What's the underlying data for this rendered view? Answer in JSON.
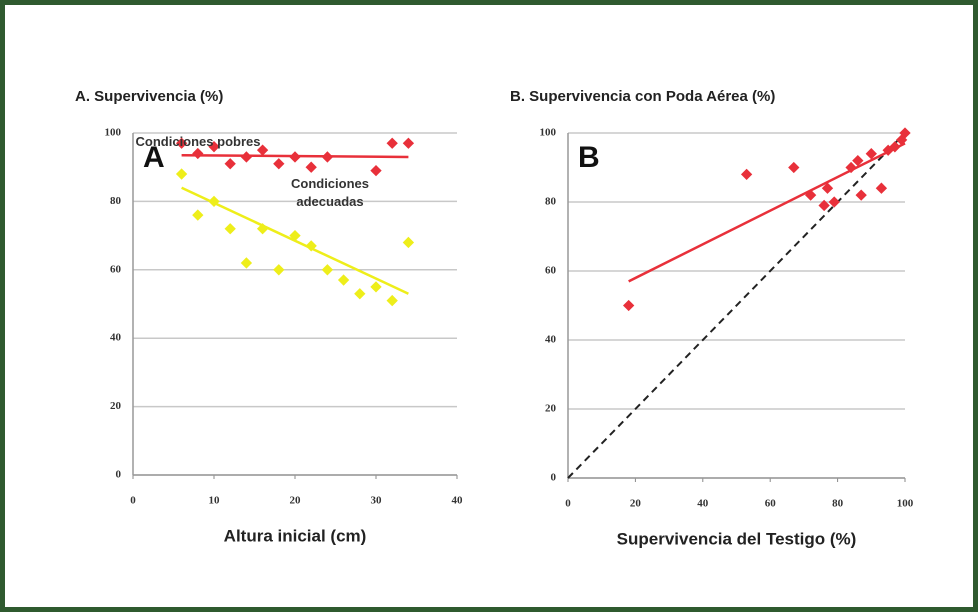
{
  "chart_data": [
    {
      "type": "scatter",
      "title": "A. Supervivencia (%)",
      "panel_label": "A",
      "xlabel": "Altura inicial (cm)",
      "xlim": [
        0,
        40
      ],
      "ylim": [
        0,
        100
      ],
      "xticks": [
        0,
        10,
        20,
        30,
        40
      ],
      "yticks": [
        0,
        20,
        40,
        60,
        80,
        100
      ],
      "grid": true,
      "series": [
        {
          "name": "Condiciones adecuadas",
          "color": "#e8303a",
          "x": [
            6,
            8,
            10,
            12,
            14,
            16,
            18,
            20,
            22,
            24,
            30,
            32,
            34
          ],
          "values": [
            97,
            94,
            96,
            91,
            93,
            95,
            91,
            93,
            90,
            93,
            89,
            97,
            97
          ],
          "trend": {
            "x": [
              6,
              34
            ],
            "values": [
              93.5,
              93
            ]
          }
        },
        {
          "name": "Condiciones pobres",
          "color": "#eeee1a",
          "x": [
            6,
            8,
            10,
            12,
            14,
            16,
            18,
            20,
            22,
            24,
            26,
            28,
            30,
            32,
            34
          ],
          "values": [
            88,
            76,
            80,
            72,
            62,
            72,
            60,
            70,
            67,
            60,
            57,
            53,
            55,
            51,
            68
          ],
          "trend": {
            "x": [
              6,
              34
            ],
            "values": [
              84,
              53
            ]
          }
        }
      ]
    },
    {
      "type": "scatter",
      "title": "B. Supervivencia con Poda Aérea (%)",
      "panel_label": "B",
      "xlabel": "Supervivencia del Testigo (%)",
      "xlim": [
        0,
        100
      ],
      "ylim": [
        0,
        100
      ],
      "xticks": [
        0,
        20,
        40,
        60,
        80,
        100
      ],
      "yticks": [
        0,
        20,
        40,
        60,
        80,
        100
      ],
      "grid": true,
      "series": [
        {
          "color": "#e8303a",
          "x": [
            18,
            53,
            67,
            72,
            76,
            77,
            79,
            84,
            86,
            87,
            90,
            93,
            95,
            97,
            99,
            100
          ],
          "values": [
            50,
            88,
            90,
            82,
            79,
            84,
            80,
            90,
            92,
            82,
            94,
            84,
            95,
            96,
            98,
            100
          ],
          "trend": {
            "x": [
              18,
              100
            ],
            "values": [
              57,
              97
            ]
          }
        }
      ],
      "reference_line": {
        "x": [
          0,
          100
        ],
        "values": [
          0,
          100
        ]
      }
    }
  ]
}
